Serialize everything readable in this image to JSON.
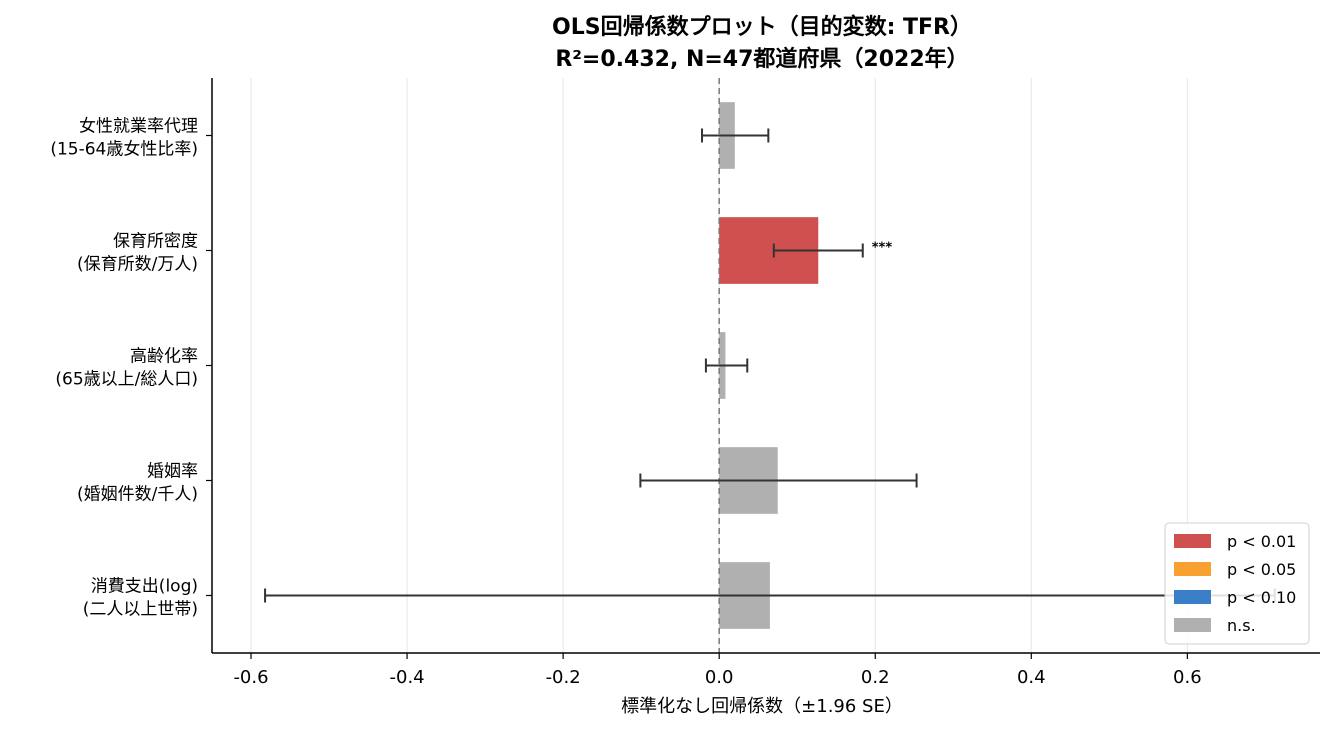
{
  "chart_data": {
    "type": "bar",
    "orientation": "horizontal",
    "title": "OLS回帰係数プロット（目的変数: TFR）",
    "subtitle": "R²=0.432, N=47都道府県（2022年）",
    "xlabel": "標準化なし回帰係数（±1.96 SE）",
    "xlim": [
      -0.65,
      0.77
    ],
    "xticks": [
      -0.6,
      -0.4,
      -0.2,
      0.0,
      0.2,
      0.4,
      0.6
    ],
    "xtick_labels": [
      "-0.6",
      "-0.4",
      "-0.2",
      "0.0",
      "0.2",
      "0.4",
      "0.6"
    ],
    "grid": "vertical",
    "zero_line": "dashed",
    "legend_position": "bottom-right",
    "categories": [
      {
        "line1": "女性就業率代理",
        "line2": "(15-64歳女性比率)"
      },
      {
        "line1": "保育所密度",
        "line2": "(保育所数/万人)"
      },
      {
        "line1": "高齢化率",
        "line2": "(65歳以上/総人口)"
      },
      {
        "line1": "婚姻率",
        "line2": "(婚姻件数/千人)"
      },
      {
        "line1": "消費支出(log)",
        "line2": "(二人以上世帯)"
      }
    ],
    "bars": [
      {
        "value": 0.02,
        "ci": [
          -0.022,
          0.063
        ],
        "significance": "ns",
        "stars": ""
      },
      {
        "value": 0.127,
        "ci": [
          0.07,
          0.184
        ],
        "significance": "p01",
        "stars": "***"
      },
      {
        "value": 0.008,
        "ci": [
          -0.017,
          0.036
        ],
        "significance": "ns",
        "stars": ""
      },
      {
        "value": 0.075,
        "ci": [
          -0.101,
          0.253
        ],
        "significance": "ns",
        "stars": ""
      },
      {
        "value": 0.065,
        "ci": [
          -0.582,
          0.712
        ],
        "significance": "ns",
        "stars": ""
      }
    ],
    "legend": [
      {
        "key": "p01",
        "label": "p < 0.01",
        "color": "#d05050"
      },
      {
        "key": "p05",
        "label": "p < 0.05",
        "color": "#f8a030"
      },
      {
        "key": "p10",
        "label": "p < 0.10",
        "color": "#3a7ec8"
      },
      {
        "key": "ns",
        "label": "n.s.",
        "color": "#b0b0b0"
      }
    ],
    "colors": {
      "grid": "#e6e6e6",
      "errorbar": "#333333",
      "zero_line": "#777777",
      "axis": "#000000"
    }
  }
}
